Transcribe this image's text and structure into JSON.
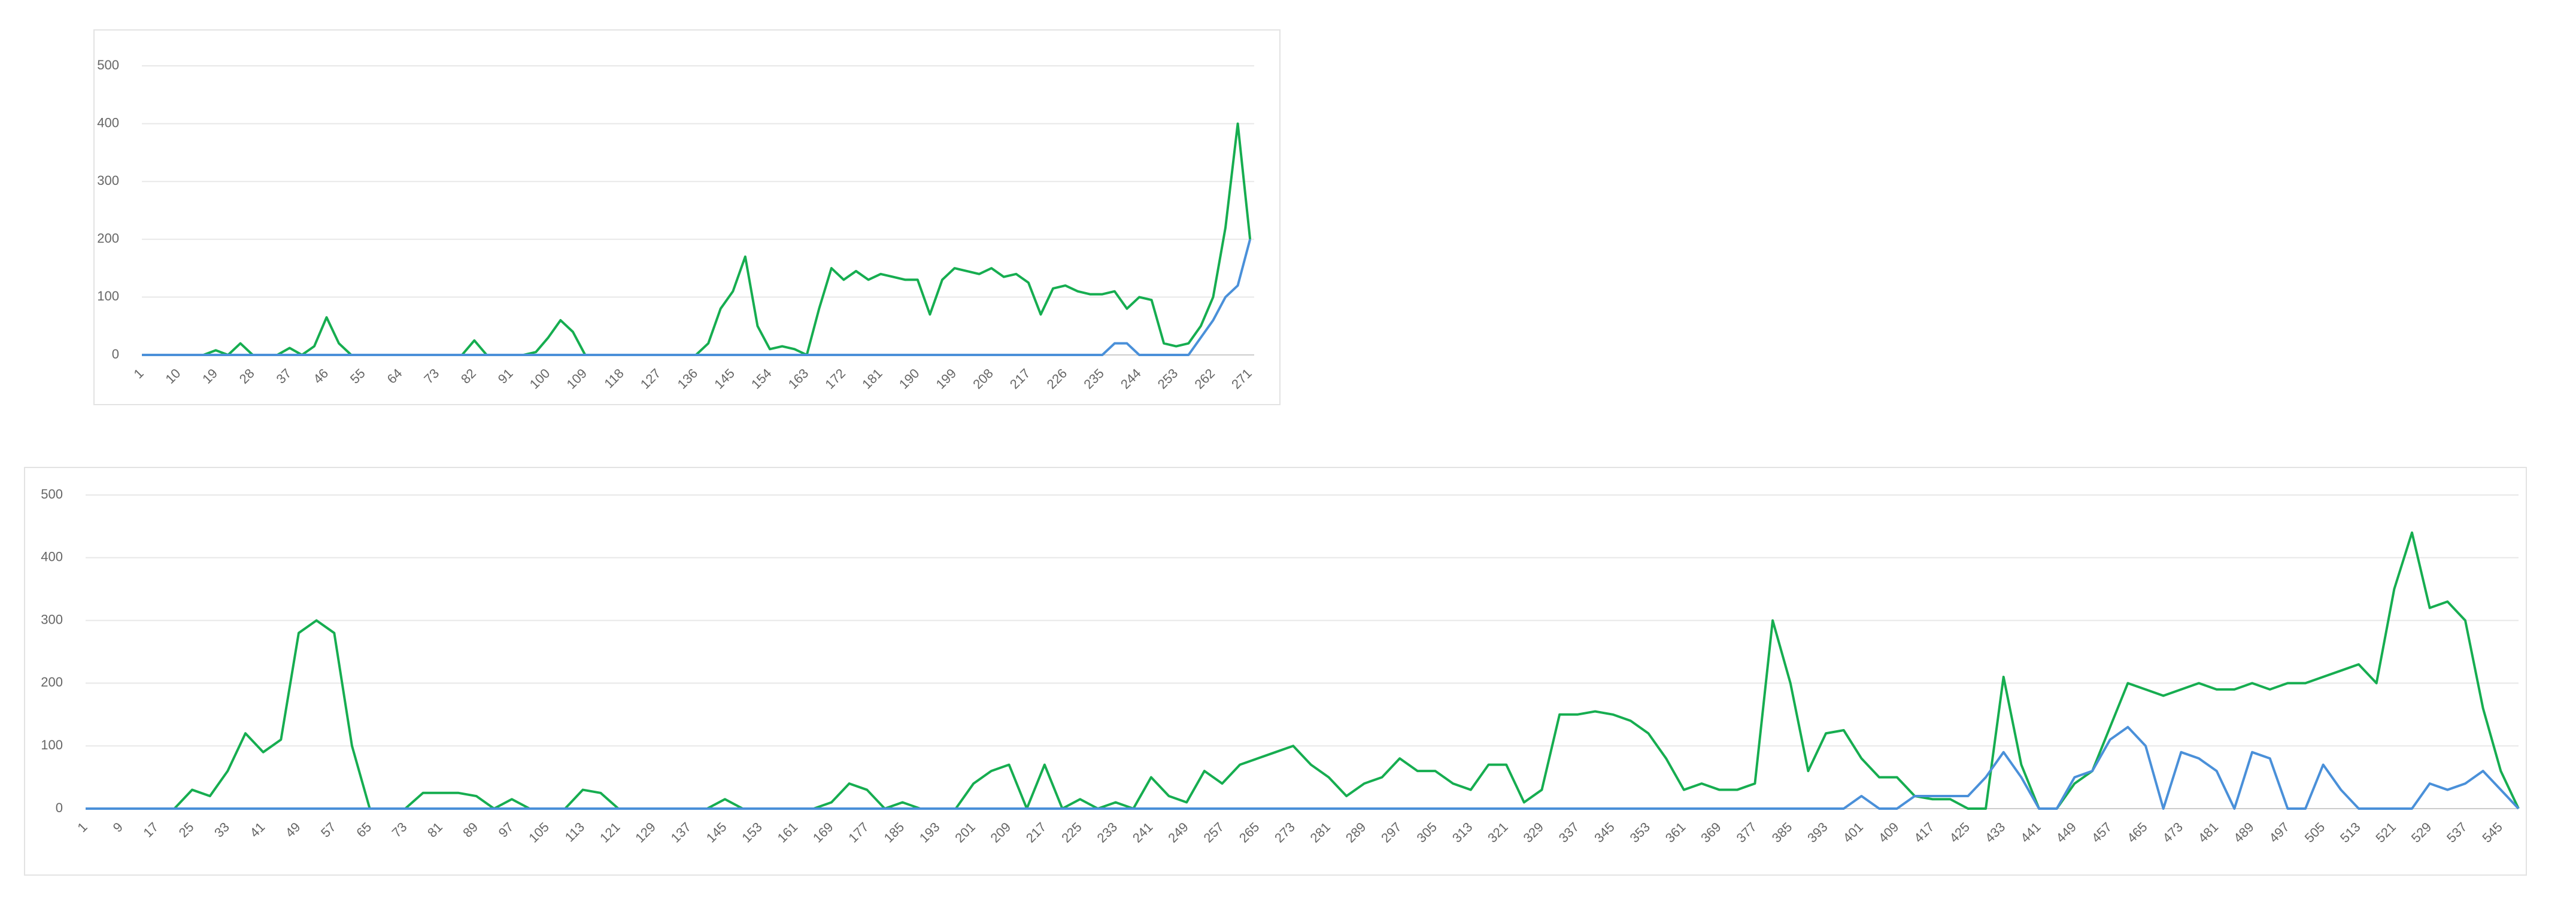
{
  "chart_data": [
    {
      "type": "line",
      "x": [
        1,
        4,
        7,
        10,
        13,
        16,
        19,
        22,
        25,
        28,
        31,
        34,
        37,
        40,
        43,
        46,
        49,
        52,
        55,
        58,
        61,
        64,
        67,
        70,
        73,
        76,
        79,
        82,
        85,
        88,
        91,
        94,
        97,
        100,
        103,
        106,
        109,
        112,
        115,
        118,
        121,
        124,
        127,
        130,
        133,
        136,
        139,
        142,
        145,
        148,
        151,
        154,
        157,
        160,
        163,
        166,
        169,
        172,
        175,
        178,
        181,
        184,
        187,
        190,
        193,
        196,
        199,
        202,
        205,
        208,
        211,
        214,
        217,
        220,
        223,
        226,
        229,
        232,
        235,
        238,
        241,
        244,
        247,
        250,
        253,
        256,
        259,
        262,
        265,
        268,
        271
      ],
      "series": [
        {
          "color": "#16ad50",
          "values": [
            0,
            0,
            0,
            0,
            0,
            0,
            8,
            0,
            20,
            0,
            0,
            0,
            12,
            0,
            15,
            65,
            20,
            0,
            0,
            0,
            0,
            0,
            0,
            0,
            0,
            0,
            0,
            25,
            0,
            0,
            0,
            0,
            5,
            30,
            60,
            40,
            0,
            0,
            0,
            0,
            0,
            0,
            0,
            0,
            0,
            0,
            20,
            80,
            110,
            170,
            50,
            10,
            15,
            10,
            0,
            80,
            150,
            130,
            145,
            130,
            140,
            135,
            130,
            130,
            70,
            130,
            150,
            145,
            140,
            150,
            135,
            140,
            125,
            70,
            115,
            120,
            110,
            105,
            105,
            110,
            80,
            100,
            95,
            20,
            15,
            20,
            50,
            100,
            220,
            400,
            200
          ]
        },
        {
          "color": "#4a90d9",
          "values": [
            0,
            0,
            0,
            0,
            0,
            0,
            0,
            0,
            0,
            0,
            0,
            0,
            0,
            0,
            0,
            0,
            0,
            0,
            0,
            0,
            0,
            0,
            0,
            0,
            0,
            0,
            0,
            0,
            0,
            0,
            0,
            0,
            0,
            0,
            0,
            0,
            0,
            0,
            0,
            0,
            0,
            0,
            0,
            0,
            0,
            0,
            0,
            0,
            0,
            0,
            0,
            0,
            0,
            0,
            0,
            0,
            0,
            0,
            0,
            0,
            0,
            0,
            0,
            0,
            0,
            0,
            0,
            0,
            0,
            0,
            0,
            0,
            0,
            0,
            0,
            0,
            0,
            0,
            0,
            20,
            20,
            0,
            0,
            0,
            0,
            0,
            30,
            60,
            100,
            120,
            200
          ]
        }
      ],
      "xlim": [
        1,
        272
      ],
      "xticks": [
        1,
        10,
        19,
        28,
        37,
        46,
        55,
        64,
        73,
        82,
        91,
        100,
        109,
        118,
        127,
        136,
        145,
        154,
        163,
        172,
        181,
        190,
        199,
        208,
        217,
        226,
        235,
        244,
        253,
        262,
        271
      ],
      "ylim": [
        0,
        500
      ],
      "yticks": [
        0,
        100,
        200,
        300,
        400,
        500
      ],
      "grid": true
    },
    {
      "type": "line",
      "x": [
        1,
        5,
        9,
        13,
        17,
        21,
        25,
        29,
        33,
        37,
        41,
        45,
        49,
        53,
        57,
        61,
        65,
        69,
        73,
        77,
        81,
        85,
        89,
        93,
        97,
        101,
        105,
        109,
        113,
        117,
        121,
        125,
        129,
        133,
        137,
        141,
        145,
        149,
        153,
        157,
        161,
        165,
        169,
        173,
        177,
        181,
        185,
        189,
        193,
        197,
        201,
        205,
        209,
        213,
        217,
        221,
        225,
        229,
        233,
        237,
        241,
        245,
        249,
        253,
        257,
        261,
        265,
        269,
        273,
        277,
        281,
        285,
        289,
        293,
        297,
        301,
        305,
        309,
        313,
        317,
        321,
        325,
        329,
        333,
        337,
        341,
        345,
        349,
        353,
        357,
        361,
        365,
        369,
        373,
        377,
        381,
        385,
        389,
        393,
        397,
        401,
        405,
        409,
        413,
        417,
        421,
        425,
        429,
        433,
        437,
        441,
        445,
        449,
        453,
        457,
        461,
        465,
        469,
        473,
        477,
        481,
        485,
        489,
        493,
        497,
        501,
        505,
        509,
        513,
        517,
        521,
        525,
        529,
        533,
        537,
        541,
        545,
        549
      ],
      "series": [
        {
          "color": "#16ad50",
          "values": [
            0,
            0,
            0,
            0,
            0,
            0,
            30,
            20,
            60,
            120,
            90,
            110,
            280,
            300,
            280,
            100,
            0,
            0,
            0,
            25,
            25,
            25,
            20,
            0,
            15,
            0,
            0,
            0,
            30,
            25,
            0,
            0,
            0,
            0,
            0,
            0,
            15,
            0,
            0,
            0,
            0,
            0,
            10,
            40,
            30,
            0,
            10,
            0,
            0,
            0,
            40,
            60,
            70,
            0,
            70,
            0,
            15,
            0,
            10,
            0,
            50,
            20,
            10,
            60,
            40,
            70,
            80,
            90,
            100,
            70,
            50,
            20,
            40,
            50,
            80,
            60,
            60,
            40,
            30,
            70,
            70,
            10,
            30,
            150,
            150,
            155,
            150,
            140,
            120,
            80,
            30,
            40,
            30,
            30,
            40,
            300,
            200,
            60,
            120,
            125,
            80,
            50,
            50,
            20,
            15,
            15,
            0,
            0,
            210,
            70,
            0,
            0,
            40,
            60,
            130,
            200,
            190,
            180,
            190,
            200,
            190,
            190,
            200,
            190,
            200,
            200,
            210,
            220,
            230,
            200,
            350,
            440,
            320,
            330,
            300,
            160,
            60,
            0
          ]
        },
        {
          "color": "#4a90d9",
          "values": [
            0,
            0,
            0,
            0,
            0,
            0,
            0,
            0,
            0,
            0,
            0,
            0,
            0,
            0,
            0,
            0,
            0,
            0,
            0,
            0,
            0,
            0,
            0,
            0,
            0,
            0,
            0,
            0,
            0,
            0,
            0,
            0,
            0,
            0,
            0,
            0,
            0,
            0,
            0,
            0,
            0,
            0,
            0,
            0,
            0,
            0,
            0,
            0,
            0,
            0,
            0,
            0,
            0,
            0,
            0,
            0,
            0,
            0,
            0,
            0,
            0,
            0,
            0,
            0,
            0,
            0,
            0,
            0,
            0,
            0,
            0,
            0,
            0,
            0,
            0,
            0,
            0,
            0,
            0,
            0,
            0,
            0,
            0,
            0,
            0,
            0,
            0,
            0,
            0,
            0,
            0,
            0,
            0,
            0,
            0,
            0,
            0,
            0,
            0,
            0,
            20,
            0,
            0,
            20,
            20,
            20,
            20,
            50,
            90,
            50,
            0,
            0,
            50,
            60,
            110,
            130,
            100,
            0,
            90,
            80,
            60,
            0,
            90,
            80,
            0,
            0,
            70,
            30,
            0,
            0,
            0,
            0,
            40,
            30,
            40,
            60,
            30,
            0
          ]
        }
      ],
      "xlim": [
        1,
        549
      ],
      "xticks": [
        1,
        9,
        17,
        25,
        33,
        41,
        49,
        57,
        65,
        73,
        81,
        89,
        97,
        105,
        113,
        121,
        129,
        137,
        145,
        153,
        161,
        169,
        177,
        185,
        193,
        201,
        209,
        217,
        225,
        233,
        241,
        249,
        257,
        265,
        273,
        281,
        289,
        297,
        305,
        313,
        321,
        329,
        337,
        345,
        353,
        361,
        369,
        377,
        385,
        393,
        401,
        409,
        417,
        425,
        433,
        441,
        449,
        457,
        465,
        473,
        481,
        489,
        497,
        505,
        513,
        521,
        529,
        537,
        545
      ],
      "ylim": [
        0,
        500
      ],
      "yticks": [
        0,
        100,
        200,
        300,
        400,
        500
      ],
      "grid": true
    }
  ]
}
